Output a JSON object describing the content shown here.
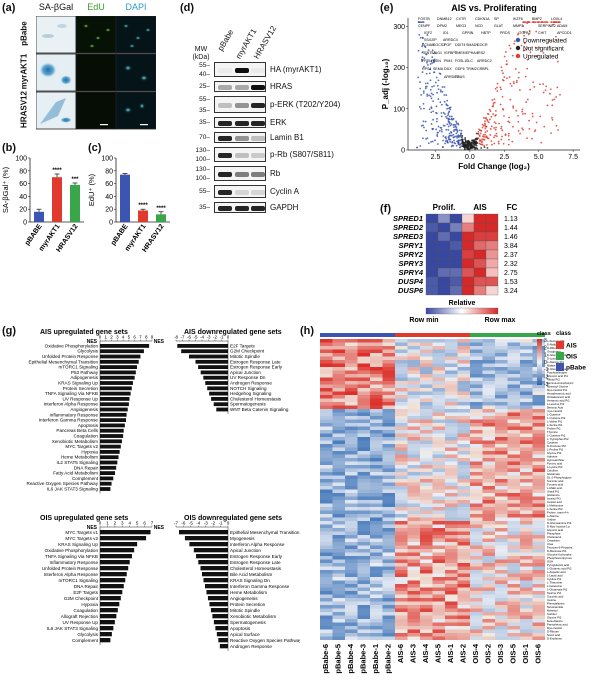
{
  "panels": {
    "a": {
      "label": "(a)",
      "columns": [
        "SA-βGal",
        "EdU",
        "DAPI"
      ],
      "column_colors": [
        "#111111",
        "#3a9a2a",
        "#2a9ac9"
      ],
      "rows": [
        "pBabe",
        "myrAKT1",
        "HRASV12"
      ]
    },
    "b": {
      "label": "(b)",
      "chart_data": {
        "type": "bar",
        "categories": [
          "pBABE",
          "myrAKT1",
          "HRASV12"
        ],
        "values": [
          16,
          70,
          58
        ],
        "errors": [
          4,
          5,
          3
        ],
        "colors": [
          "#3b55b0",
          "#e03a2e",
          "#3aa64a"
        ],
        "ylabel": "SA-βGal⁺ (%)",
        "ylim": [
          0,
          100
        ],
        "yticks": [
          0,
          20,
          40,
          60,
          80,
          100
        ],
        "significance": [
          "",
          "****",
          "***"
        ]
      }
    },
    "c": {
      "label": "(c)",
      "chart_data": {
        "type": "bar",
        "categories": [
          "pBABE",
          "myrAKT1",
          "HRASV12"
        ],
        "values": [
          74,
          18,
          12
        ],
        "errors": [
          2,
          2,
          4
        ],
        "colors": [
          "#3b55b0",
          "#e03a2e",
          "#3aa64a"
        ],
        "ylabel": "EdU⁺ (%)",
        "ylim": [
          0,
          100
        ],
        "yticks": [
          0,
          20,
          40,
          60,
          80,
          100
        ],
        "significance": [
          "",
          "****",
          "****"
        ]
      }
    },
    "d": {
      "label": "(d)",
      "mw_header": "MW (kDa)",
      "lanes": [
        "pBabe",
        "myrAKT1",
        "HRASV12"
      ],
      "blots": [
        {
          "name": "HA (myrAKT1)",
          "mw": [
            "55",
            "40"
          ],
          "bands": [
            0,
            1,
            0
          ]
        },
        {
          "name": "HRAS",
          "mw": [
            "25"
          ],
          "bands": [
            0.3,
            0.3,
            1
          ]
        },
        {
          "name": "p-ERK (T202/Y204)",
          "mw": [
            "55",
            "35"
          ],
          "bands": [
            0.2,
            0.4,
            0.9
          ]
        },
        {
          "name": "ERK",
          "mw": [
            "35"
          ],
          "bands": [
            0.9,
            0.9,
            0.9
          ]
        },
        {
          "name": "Lamin B1",
          "mw": [
            "70"
          ],
          "bands": [
            0.9,
            0.4,
            0.2
          ]
        },
        {
          "name": "p-Rb (S807/S811)",
          "mw": [
            "130",
            "100"
          ],
          "bands": [
            0.9,
            0.2,
            0.15
          ]
        },
        {
          "name": "Rb",
          "mw": [
            "130",
            "100"
          ],
          "bands": [
            0.9,
            0.5,
            0.5
          ]
        },
        {
          "name": "Cyclin A",
          "mw": [
            "55"
          ],
          "bands": [
            0.9,
            0.1,
            0.1
          ]
        },
        {
          "name": "GAPDH",
          "mw": [
            "35"
          ],
          "bands": [
            0.9,
            0.9,
            0.9
          ]
        }
      ]
    },
    "e": {
      "label": "(e)",
      "chart_data": {
        "type": "scatter",
        "title": "AIS vs. Proliferating",
        "xlabel": "Fold Change (log₂)",
        "ylabel": "P_adj (-log₁₀)",
        "xticks": [
          "2.5",
          "0.0",
          "2.5",
          "5.0",
          "7.5"
        ],
        "yticks": [
          "0",
          "100",
          "200",
          "300"
        ],
        "ylim": [
          0,
          320
        ],
        "xlim": [
          -4.5,
          8
        ],
        "legend": [
          "Downregulated",
          "Not significant",
          "Upregulated"
        ],
        "legend_colors": [
          "#3b55b0",
          "#222222",
          "#e03a2e"
        ],
        "gene_labels": [
          "FOS7B",
          "DNMB12",
          "CXTR",
          "CDKN1A",
          "SP",
          "IKZF6",
          "BMP2",
          "LOXL4",
          "CENPF",
          "DPM2",
          "MEG3",
          "NCD",
          "GLAT",
          "MMP3",
          "SERPINE2",
          "ADAM",
          "IGF2",
          "ID1",
          "GPRIN",
          "HBTP",
          "PRDS",
          "TGFB2",
          "CHIT",
          "APCDD1",
          "SSX2IP",
          "ARRDC4",
          "PGF",
          "DDIT4",
          "SMAD9",
          "COCR",
          "KCNA6",
          "SOCS2",
          "IGFBP5",
          "TMEM",
          "EPHA4",
          "IRS2",
          "TENT5A",
          "JAG1",
          "PIM1",
          "FOSL1",
          "SLC",
          "ARRDC2",
          "PRELP",
          "NDN",
          "DDX",
          "GDF6",
          "TRIM2",
          "CRBPL",
          "RPS4",
          "SEMA",
          "ARRDC3",
          "FRAS"
        ]
      }
    },
    "f": {
      "label": "(f)",
      "genes": [
        "SPRED1",
        "SPRED2",
        "SPRED3",
        "SPRY1",
        "SPRY2",
        "SPRY3",
        "SPRY4",
        "DUSP4",
        "DUSP6"
      ],
      "col_headers": [
        "Prolif.",
        "AIS",
        "FC"
      ],
      "fc": [
        "1.13",
        "1.44",
        "1.46",
        "3.84",
        "2.37",
        "2.32",
        "2.75",
        "1.53",
        "3.24"
      ],
      "values": [
        [
          -1.0,
          -0.6,
          -1.0,
          0.2,
          1.0,
          1.0
        ],
        [
          -0.9,
          -1.0,
          -0.7,
          0.6,
          1.0,
          1.0
        ],
        [
          -1.0,
          -0.8,
          -1.0,
          1.0,
          0.9,
          0.9
        ],
        [
          -1.0,
          -1.0,
          -0.9,
          1.0,
          0.7,
          0.6
        ],
        [
          -1.0,
          -1.0,
          -1.0,
          0.9,
          1.0,
          0.5
        ],
        [
          -1.0,
          -1.0,
          -1.0,
          1.0,
          0.8,
          0.4
        ],
        [
          -1.0,
          -0.8,
          -0.8,
          0.8,
          1.0,
          0.3
        ],
        [
          -0.9,
          -1.0,
          -0.9,
          1.0,
          0.8,
          0.8
        ],
        [
          -0.9,
          -1.0,
          -0.8,
          1.0,
          0.6,
          0.2
        ]
      ],
      "legend_title": "Relative",
      "legend_min": "Row min",
      "legend_max": "Row max"
    },
    "g": {
      "label": "(g)",
      "nes_label": "NES",
      "charts": [
        {
          "title": "AIS upregulated gene sets",
          "ticks": [
            "0",
            "1",
            "2",
            "3",
            "4",
            "5",
            "6",
            "7",
            "8",
            "9"
          ],
          "direction": "up",
          "items": [
            {
              "name": "Oxidative Phosphorylation",
              "value": 8.5
            },
            {
              "name": "Glycolysis",
              "value": 7.6
            },
            {
              "name": "Unfolded Protein Response",
              "value": 7.0
            },
            {
              "name": "Epithelial Mesenchymal Transition",
              "value": 6.7
            },
            {
              "name": "mTORC1 Signaling",
              "value": 6.4
            },
            {
              "name": "P53 Pathway",
              "value": 6.2
            },
            {
              "name": "Adipogenesis",
              "value": 6.0
            },
            {
              "name": "KRAS Signaling Up",
              "value": 5.7
            },
            {
              "name": "Protein Secretion",
              "value": 5.5
            },
            {
              "name": "TNFA Signaling Via NFKB",
              "value": 5.3
            },
            {
              "name": "UV Response Up",
              "value": 5.1
            },
            {
              "name": "Interferon Alpha Response",
              "value": 5.0
            },
            {
              "name": "Angiogenesis",
              "value": 4.8
            },
            {
              "name": "Inflammatory Response",
              "value": 4.6
            },
            {
              "name": "Interferon Gamma Response",
              "value": 4.5
            },
            {
              "name": "Apoptosis",
              "value": 4.3
            },
            {
              "name": "Pancreas Beta Cells",
              "value": 4.1
            },
            {
              "name": "Coagulation",
              "value": 4.0
            },
            {
              "name": "Xenobiotic Metabolism",
              "value": 3.8
            },
            {
              "name": "MYC Targets v2",
              "value": 3.6
            },
            {
              "name": "Hypoxia",
              "value": 3.4
            },
            {
              "name": "Heme Metabolism",
              "value": 3.2
            },
            {
              "name": "IL2 STAT5 Signaling",
              "value": 3.0
            },
            {
              "name": "DNA Repair",
              "value": 2.8
            },
            {
              "name": "Fatty Acid Metabolism",
              "value": 2.6
            },
            {
              "name": "Complement",
              "value": 2.3
            },
            {
              "name": "Reactive Oxygen Species Pathway",
              "value": 2.0
            },
            {
              "name": "IL6 JAK STAT3 Signaling",
              "value": 1.8
            }
          ]
        },
        {
          "title": "AIS downregulated gene sets",
          "ticks": [
            "-8",
            "-7",
            "-6",
            "-5",
            "-4",
            "-3",
            "-2",
            "-1",
            "0"
          ],
          "direction": "down",
          "items": [
            {
              "name": "E2F Targets",
              "value": -7.8
            },
            {
              "name": "G2M Checkpoint",
              "value": -7.2
            },
            {
              "name": "Mitotic Spindle",
              "value": -6.0
            },
            {
              "name": "Estrogen Response Late",
              "value": -5.0
            },
            {
              "name": "Estrogen Response Early",
              "value": -4.6
            },
            {
              "name": "Apical Junction",
              "value": -4.2
            },
            {
              "name": "UV Response Dn",
              "value": -3.8
            },
            {
              "name": "Androgen Response",
              "value": -3.5
            },
            {
              "name": "NOTCH Signaling",
              "value": -3.2
            },
            {
              "name": "Hedgehog Signaling",
              "value": -2.9
            },
            {
              "name": "Cholesterol Homeostasis",
              "value": -2.6
            },
            {
              "name": "Spermatogenesis",
              "value": -2.2
            },
            {
              "name": "WNT Beta Catenin Signaling",
              "value": -1.8
            }
          ]
        },
        {
          "title": "OIS upregulated gene sets",
          "ticks": [
            "0",
            "1",
            "2",
            "3",
            "4",
            "5",
            "6",
            "7"
          ],
          "direction": "up",
          "items": [
            {
              "name": "MYC Targets v1",
              "value": 6.8
            },
            {
              "name": "MYC Targets v2",
              "value": 6.2
            },
            {
              "name": "KRAS Signaling Up",
              "value": 5.0
            },
            {
              "name": "Oxidative Phosphorylation",
              "value": 4.6
            },
            {
              "name": "TNFA Signaling Via NFKB",
              "value": 4.3
            },
            {
              "name": "Inflammatory Response",
              "value": 4.0
            },
            {
              "name": "Unfolded Protein Response",
              "value": 3.8
            },
            {
              "name": "Interferon Alpha Response",
              "value": 3.6
            },
            {
              "name": "mTORC1 Signaling",
              "value": 3.4
            },
            {
              "name": "DNA Repair",
              "value": 3.2
            },
            {
              "name": "E2F Targets",
              "value": 3.0
            },
            {
              "name": "G2M Checkpoint",
              "value": 2.8
            },
            {
              "name": "Hypoxia",
              "value": 2.6
            },
            {
              "name": "Coagulation",
              "value": 2.4
            },
            {
              "name": "Allograft Rejection",
              "value": 2.2
            },
            {
              "name": "UV Response Up",
              "value": 2.0
            },
            {
              "name": "IL6 JAK STAT3 Signaling",
              "value": 1.8
            },
            {
              "name": "Glycolysis",
              "value": 1.6
            },
            {
              "name": "Complement",
              "value": 1.4
            }
          ]
        },
        {
          "title": "OIS downregulated gene sets",
          "ticks": [
            "-7",
            "-6",
            "-5",
            "-4",
            "-3",
            "-2",
            "-1",
            "0"
          ],
          "direction": "down",
          "items": [
            {
              "name": "Epithelial Mesenchymal Transition",
              "value": -6.6
            },
            {
              "name": "Myogenesis",
              "value": -5.8
            },
            {
              "name": "Interferon Alpha Response",
              "value": -5.2
            },
            {
              "name": "Apical Junction",
              "value": -4.6
            },
            {
              "name": "Estrogen Response Early",
              "value": -4.3
            },
            {
              "name": "Estrogen Response Late",
              "value": -4.0
            },
            {
              "name": "Cholesterol Homeostasis",
              "value": -3.7
            },
            {
              "name": "Bile Acid Metabolism",
              "value": -3.5
            },
            {
              "name": "KRAS Signaling Dn",
              "value": -3.3
            },
            {
              "name": "Interferon Gamma Response",
              "value": -3.1
            },
            {
              "name": "Heme Metabolism",
              "value": -2.9
            },
            {
              "name": "Angiogenesis",
              "value": -2.7
            },
            {
              "name": "Protein Secretion",
              "value": -2.5
            },
            {
              "name": "Mitotic Spindle",
              "value": -2.3
            },
            {
              "name": "Xenobiotic Metabolism",
              "value": -2.1
            },
            {
              "name": "Spermatogenesis",
              "value": -1.9
            },
            {
              "name": "Apoptosis",
              "value": -1.7
            },
            {
              "name": "Apical Surface",
              "value": -1.5
            },
            {
              "name": "Reactive Oxygen Species Pathway",
              "value": -1.3
            },
            {
              "name": "Androgen Response",
              "value": -1.1
            }
          ]
        }
      ]
    },
    "h": {
      "label": "(h)",
      "samples": [
        "pBabe-6",
        "pBabe-5",
        "pBabe-4",
        "pBabe-3",
        "pBabe-1",
        "pBabe-2",
        "AIS-6",
        "AIS-3",
        "AIS-4",
        "AIS-5",
        "AIS-1",
        "AIS-2",
        "OIS-4",
        "OIS-2",
        "OIS-3",
        "OIS-5",
        "OIS-1",
        "OIS-6"
      ],
      "sample_groups": [
        "pBabe",
        "pBabe",
        "pBabe",
        "pBabe",
        "pBabe",
        "pBabe",
        "AIS",
        "AIS",
        "AIS",
        "AIS",
        "AIS",
        "AIS",
        "OIS",
        "OIS",
        "OIS",
        "OIS",
        "OIS",
        "OIS"
      ],
      "group_colors": {
        "AIS": "#e03a2e",
        "OIS": "#3aa64a",
        "pBabe": "#3b55b0"
      },
      "legend_title": "class",
      "legend_items": [
        "AIS",
        "OIS",
        "pBabe"
      ],
      "scale_ticks": [
        "3",
        "2",
        "1",
        "0",
        "-1",
        "-2",
        "-3"
      ],
      "scale_title": "class",
      "metabolites": [
        "L-Sucrose Pt1",
        "D-Maltose Pt1",
        "D-Ribose Pt2",
        "Oxoglutaric",
        "D-Glucose Acid-4x",
        "D-Lyxose Pt2",
        "L-Alanine Pt1",
        "Malate",
        "D-Glucosamine",
        "Porphobilinogen",
        "Glyceric acid Pt1",
        "Ribitol Pt2",
        "gamma-Aminobutyric",
        "Myristoyl Glycine",
        "Myo-Inositol Pt1",
        "Hexadecanoic acid",
        "Octadecanoic acid",
        "Hexanoic acid Pt2",
        "L-Leucine Pt1",
        "Benzoic Acid",
        "myo-Inositol",
        "L-Cysteine",
        "L-Cysteine Pt2",
        "L-Valine Pt1",
        "L-Serine Pt1",
        "Proline Pt1",
        "Thymine",
        "L-Cysteine Pt2",
        "L-Tryptophan Pt2",
        "Cysteine",
        "D-Fructose Pt2",
        "L-Proline Pt1",
        "Glycine Pt2",
        "Adenine",
        "Hypoxanthine",
        "Pyruvic acid",
        "L-Lysine Pt2",
        "Citrulline",
        "Glutamate",
        "DL-2-Phosphoglyce",
        "Succinic acid",
        "Fumaric acid",
        "L-Malic acid",
        "Uracil Pt1",
        "Glutamine",
        "Inositol Pt1",
        "Inositol acid",
        "L-Methionine",
        "L-Serine Pt2",
        "Proline, trans-4-h",
        "L-Alanine",
        "Uridine",
        "D-Glucosamine Pt3",
        "D-Myo-Inositol-1-p",
        "Glyceric acid",
        "Phosphate",
        "Cholesterol",
        "Creatinine",
        "Urea",
        "Fructose-6-Phospha",
        "D-Mannose Pt1",
        "Glucose-6-phospha",
        "Phosphoenolpyruva",
        "GSH",
        "Pyroglutamic acid",
        "L-Glutamic acid Pt2",
        "L-Aspartic acid",
        "L-Lactic acid",
        "Cystine Pt1",
        "L-Threonine",
        "L-Isoleucine",
        "L-Glutamate Pt2",
        "Taurine Pt1",
        "Succinic acid",
        "Inosine",
        "Phenylalanine",
        "Nicotinamide",
        "Mannitol",
        "Sorbitol",
        "Glycine Pt2",
        "beta-Alanine",
        "Pantothenic acid",
        "Myo-inositol",
        "D-Ribose",
        "Nonic acid",
        "D-Erythrose"
      ]
    }
  }
}
